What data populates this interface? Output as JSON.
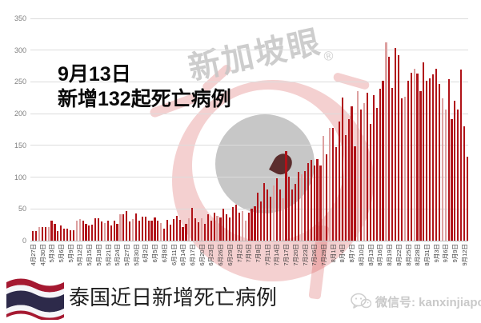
{
  "annotation": {
    "line1": "9月13日",
    "line2": "新增132起死亡病例"
  },
  "watermark": {
    "brand": "新加坡眼",
    "registered": "®"
  },
  "footer": {
    "title": "泰国近日新增死亡病例",
    "wechat_label": "微信号: kanxinjiapo",
    "flag": "thailand-flag"
  },
  "colors": {
    "bar": "#b01218",
    "bar_light": "#dda0a0",
    "grid": "#dcdcdc",
    "axis_line": "#bdbdbd",
    "y_label": "#7f7f7f",
    "x_label": "#3f3f3f",
    "watermark_pink": "rgba(213,80,80,0.27)",
    "watermark_gray": "#c7c7c7"
  },
  "chart_data": {
    "type": "bar",
    "title": "泰国近日新增死亡病例",
    "xlabel": "",
    "ylabel": "",
    "ylim": [
      0,
      350
    ],
    "yticks": [
      0,
      50,
      100,
      150,
      200,
      250,
      300,
      350
    ],
    "grid": true,
    "x_tick_every": 3,
    "x": [
      "4月27日",
      "4月28日",
      "4月29日",
      "4月30日",
      "5月1日",
      "5月2日",
      "5月3日",
      "5月4日",
      "5月5日",
      "5月6日",
      "5月7日",
      "5月8日",
      "5月9日",
      "5月10日",
      "5月11日",
      "5月12日",
      "5月13日",
      "5月14日",
      "5月15日",
      "5月16日",
      "5月17日",
      "5月18日",
      "5月19日",
      "5月20日",
      "5月21日",
      "5月22日",
      "5月23日",
      "5月24日",
      "5月25日",
      "5月26日",
      "5月27日",
      "5月28日",
      "5月29日",
      "5月30日",
      "5月31日",
      "6月1日",
      "6月2日",
      "6月3日",
      "6月4日",
      "6月5日",
      "6月6日",
      "6月7日",
      "6月8日",
      "6月9日",
      "6月10日",
      "6月11日",
      "6月12日",
      "6月13日",
      "6月14日",
      "6月15日",
      "6月16日",
      "6月17日",
      "6月18日",
      "6月19日",
      "6月20日",
      "6月21日",
      "6月22日",
      "6月23日",
      "6月24日",
      "6月25日",
      "6月26日",
      "6月27日",
      "6月28日",
      "6月29日",
      "6月30日",
      "7月1日",
      "7月2日",
      "7月3日",
      "7月4日",
      "7月5日",
      "7月6日",
      "7月7日",
      "7月8日",
      "7月9日",
      "7月10日",
      "7月11日",
      "7月12日",
      "7月13日",
      "7月14日",
      "7月15日",
      "7月16日",
      "7月17日",
      "7月18日",
      "7月19日",
      "7月20日",
      "7月21日",
      "7月22日",
      "7月23日",
      "7月24日",
      "7月25日",
      "7月26日",
      "7月27日",
      "7月28日",
      "7月29日",
      "7月30日",
      "7月31日",
      "8月1日",
      "8月2日",
      "8月3日",
      "8月4日",
      "8月5日",
      "8月6日",
      "8月7日",
      "8月8日",
      "8月9日",
      "8月10日",
      "8月11日",
      "8月12日",
      "8月13日",
      "8月14日",
      "8月15日",
      "8月16日",
      "8月17日",
      "8月18日",
      "8月19日",
      "8月20日",
      "8月21日",
      "8月22日",
      "8月23日",
      "8月24日",
      "8月25日",
      "8月26日",
      "8月27日",
      "8月28日",
      "8月29日",
      "8月30日",
      "8月31日",
      "9月1日",
      "9月2日",
      "9月3日",
      "9月4日",
      "9月5日",
      "9月6日",
      "9月7日",
      "9月8日",
      "9月9日",
      "9月10日",
      "9月11日",
      "9月12日",
      "9月13日"
    ],
    "values": [
      15,
      15,
      21,
      21,
      21,
      21,
      31,
      27,
      15,
      24,
      19,
      19,
      17,
      17,
      31,
      34,
      32,
      27,
      24,
      25,
      35,
      35,
      30,
      28,
      32,
      24,
      31,
      26,
      41,
      41,
      47,
      30,
      34,
      43,
      31,
      38,
      38,
      31,
      32,
      37,
      31,
      28,
      19,
      33,
      25,
      34,
      39,
      33,
      22,
      26,
      35,
      51,
      35,
      29,
      35,
      27,
      41,
      31,
      44,
      39,
      37,
      50,
      42,
      36,
      53,
      57,
      44,
      47,
      32,
      44,
      50,
      54,
      75,
      62,
      91,
      80,
      69,
      87,
      98,
      80,
      67,
      141,
      101,
      81,
      89,
      108,
      105,
      109,
      122,
      127,
      118,
      129,
      118,
      165,
      136,
      178,
      178,
      147,
      188,
      225,
      166,
      191,
      212,
      149,
      235,
      207,
      216,
      233,
      184,
      229,
      209,
      239,
      252,
      312,
      289,
      240,
      303,
      292,
      224,
      226,
      252,
      264,
      271,
      263,
      236,
      281,
      252,
      256,
      262,
      271,
      247,
      224,
      207,
      254,
      191,
      220,
      207,
      270,
      180,
      132
    ],
    "x_tick_labels": [
      "4月27日",
      "4月30日",
      "5月3日",
      "5月6日",
      "5月9日",
      "5月12日",
      "5月15日",
      "5月18日",
      "5月21日",
      "5月24日",
      "5月27日",
      "5月30日",
      "6月2日",
      "6月5日",
      "6月8日",
      "6月11日",
      "6月14日",
      "6月17日",
      "6月20日",
      "6月23日",
      "6月26日",
      "6月29日",
      "7月2日",
      "7月5日",
      "7月8日",
      "7月11日",
      "7月14日",
      "7月17日",
      "7月20日",
      "7月23日",
      "7月26日",
      "7月29日",
      "8月1日",
      "8月4日",
      "8月7日",
      "8月10日",
      "8月13日",
      "8月16日",
      "8月19日",
      "8月22日",
      "8月25日",
      "8月28日",
      "8月31日",
      "9月3日",
      "9月6日",
      "9月9日",
      "9月12日"
    ],
    "legend": [],
    "annotation_value": 132,
    "annotation_date": "9月13日",
    "peak_value": 312
  }
}
